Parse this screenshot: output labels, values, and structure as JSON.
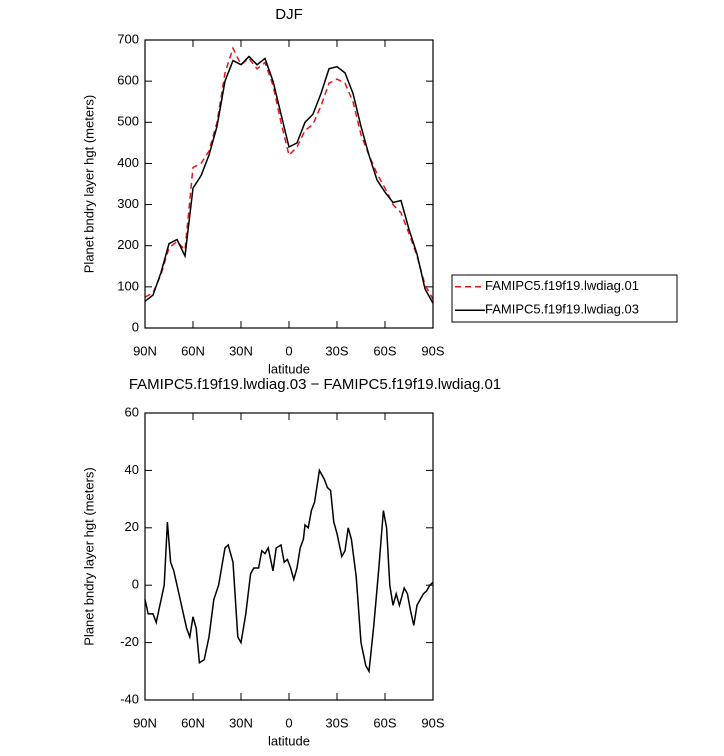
{
  "chart_data": [
    {
      "type": "line",
      "title": "DJF",
      "xlabel": "latitude",
      "ylabel": "Planet bndry layer hgt (meters)",
      "x": [
        90,
        85,
        80,
        75,
        70,
        65,
        60,
        55,
        50,
        45,
        40,
        35,
        30,
        25,
        20,
        15,
        10,
        5,
        0,
        -5,
        -10,
        -15,
        -20,
        -25,
        -30,
        -35,
        -40,
        -45,
        -50,
        -55,
        -60,
        -65,
        -70,
        -75,
        -80,
        -85,
        -90
      ],
      "series": [
        {
          "name": "FAMIPC5.f19f19.lwdiag.01",
          "color": "#e8141c",
          "line_style": "dashed",
          "values": [
            75,
            85,
            130,
            195,
            210,
            190,
            390,
            400,
            430,
            500,
            620,
            680,
            640,
            655,
            630,
            645,
            590,
            500,
            420,
            440,
            480,
            495,
            540,
            595,
            605,
            595,
            550,
            470,
            420,
            375,
            340,
            300,
            280,
            230,
            175,
            105,
            70
          ]
        },
        {
          "name": "FAMIPC5.f19f19.lwdiag.03",
          "color": "#000000",
          "line_style": "solid",
          "values": [
            65,
            80,
            135,
            205,
            215,
            175,
            340,
            370,
            420,
            490,
            600,
            650,
            640,
            660,
            640,
            655,
            600,
            520,
            440,
            450,
            500,
            520,
            570,
            630,
            635,
            620,
            570,
            490,
            420,
            360,
            330,
            305,
            310,
            240,
            180,
            95,
            60
          ]
        }
      ],
      "xlim": [
        90,
        -90
      ],
      "xticks": [
        {
          "value": 90,
          "label": "90N"
        },
        {
          "value": 60,
          "label": "60N"
        },
        {
          "value": 30,
          "label": "30N"
        },
        0,
        {
          "value": -30,
          "label": "30S"
        },
        {
          "value": -60,
          "label": "60S"
        },
        {
          "value": -90,
          "label": "90S"
        }
      ],
      "ylim": [
        0,
        700
      ],
      "yticks": [
        0,
        100,
        200,
        300,
        400,
        500,
        600,
        700
      ],
      "legend": "outside-right"
    },
    {
      "type": "line",
      "title": "FAMIPC5.f19f19.lwdiag.03 − FAMIPC5.f19f19.lwdiag.01",
      "xlabel": "latitude",
      "ylabel": "Planet bndry layer hgt (meters)",
      "x": [
        90,
        88,
        85,
        83,
        78,
        76,
        74,
        72,
        68,
        64,
        62,
        60,
        58,
        56,
        53,
        50,
        47,
        44,
        40,
        38,
        35,
        32,
        30,
        27,
        24,
        22,
        19,
        17,
        15,
        13,
        10,
        8,
        5,
        3,
        1,
        -1,
        -3,
        -5,
        -7,
        -9,
        -10,
        -12,
        -14,
        -16,
        -19,
        -22,
        -24,
        -26,
        -28,
        -30,
        -33,
        -35,
        -37,
        -39,
        -42,
        -45,
        -48,
        -50,
        -53,
        -56,
        -59,
        -61,
        -63,
        -65,
        -67,
        -69,
        -72,
        -74,
        -76,
        -78,
        -80,
        -82,
        -84,
        -86,
        -88,
        -90
      ],
      "values": [
        -5,
        -10,
        -10,
        -13,
        0,
        22,
        8,
        5,
        -5,
        -15,
        -18,
        -11,
        -15,
        -27,
        -26,
        -18,
        -5,
        0,
        13,
        14,
        8,
        -18,
        -20,
        -10,
        4,
        6,
        6,
        12,
        11,
        13,
        5,
        13,
        14,
        8,
        9,
        6,
        2,
        6,
        13,
        16,
        21,
        20,
        26,
        29,
        40,
        37,
        34,
        33,
        22,
        18,
        10,
        12,
        20,
        16,
        3,
        -20,
        -28,
        -30,
        -14,
        5,
        26,
        20,
        0,
        -7,
        -3,
        -7,
        -1,
        -3,
        -9,
        -14,
        -7,
        -5,
        -3,
        -2,
        0,
        1
      ],
      "color": "#000000",
      "xlim": [
        90,
        -90
      ],
      "xticks": [
        {
          "value": 90,
          "label": "90N"
        },
        {
          "value": 60,
          "label": "60N"
        },
        {
          "value": 30,
          "label": "30N"
        },
        0,
        {
          "value": -30,
          "label": "30S"
        },
        {
          "value": -60,
          "label": "60S"
        },
        {
          "value": -90,
          "label": "90S"
        }
      ],
      "ylim": [
        -40,
        60
      ],
      "yticks": [
        -40,
        -20,
        0,
        20,
        40,
        60
      ]
    }
  ]
}
